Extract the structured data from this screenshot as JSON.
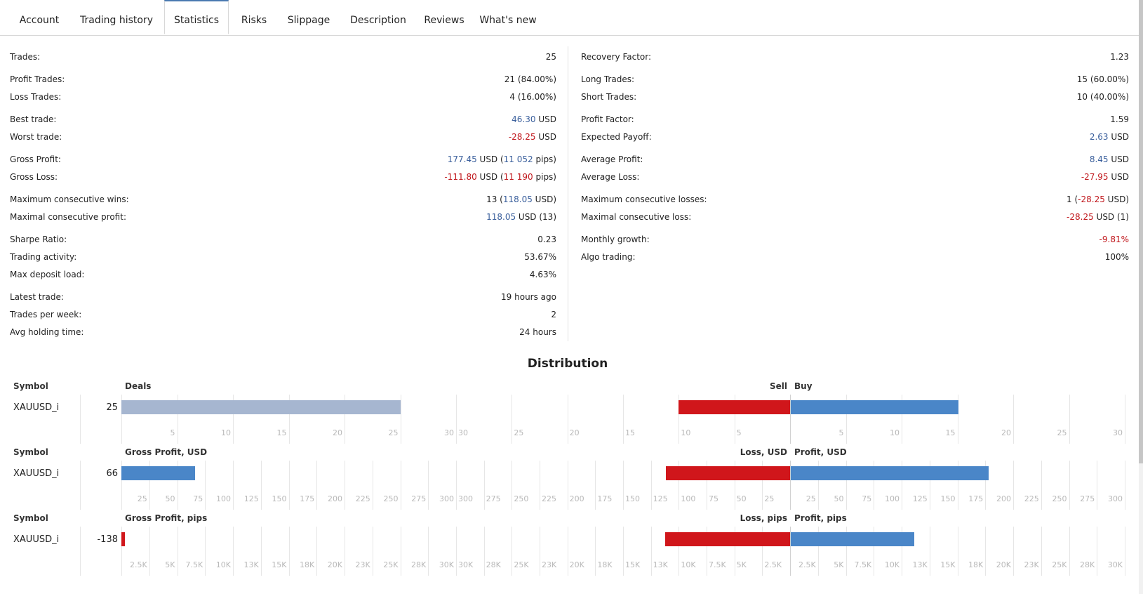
{
  "tabs": [
    "Account",
    "Trading history",
    "Statistics",
    "Risks",
    "Slippage",
    "Description",
    "Reviews",
    "What's new"
  ],
  "active_tab": "Statistics",
  "stats_left": [
    {
      "label": "Trades:",
      "value": [
        {
          "t": "25"
        }
      ]
    },
    {
      "label": "Profit Trades:",
      "value": [
        {
          "t": "21 (84.00%)"
        }
      ]
    },
    {
      "label": "Loss Trades:",
      "value": [
        {
          "t": "4 (16.00%)"
        }
      ]
    },
    {
      "label": "Best trade:",
      "value": [
        {
          "t": "46.30",
          "c": "pos"
        },
        {
          "t": " USD"
        }
      ]
    },
    {
      "label": "Worst trade:",
      "value": [
        {
          "t": "-28.25",
          "c": "neg"
        },
        {
          "t": " USD"
        }
      ]
    },
    {
      "label": "Gross Profit:",
      "value": [
        {
          "t": "177.45",
          "c": "pos"
        },
        {
          "t": " USD ("
        },
        {
          "t": "11 052",
          "c": "pos"
        },
        {
          "t": " pips)"
        }
      ]
    },
    {
      "label": "Gross Loss:",
      "value": [
        {
          "t": "-111.80",
          "c": "neg"
        },
        {
          "t": " USD ("
        },
        {
          "t": "11 190",
          "c": "neg"
        },
        {
          "t": " pips)"
        }
      ]
    },
    {
      "label": "Maximum consecutive wins:",
      "value": [
        {
          "t": "13 ("
        },
        {
          "t": "118.05",
          "c": "pos"
        },
        {
          "t": " USD)"
        }
      ]
    },
    {
      "label": "Maximal consecutive profit:",
      "value": [
        {
          "t": "118.05",
          "c": "pos"
        },
        {
          "t": " USD (13)"
        }
      ]
    },
    {
      "label": "Sharpe Ratio:",
      "value": [
        {
          "t": "0.23"
        }
      ]
    },
    {
      "label": "Trading activity:",
      "value": [
        {
          "t": "53.67%"
        }
      ]
    },
    {
      "label": "Max deposit load:",
      "value": [
        {
          "t": "4.63%"
        }
      ]
    },
    {
      "label": "Latest trade:",
      "value": [
        {
          "t": "19 hours ago"
        }
      ]
    },
    {
      "label": "Trades per week:",
      "value": [
        {
          "t": "2"
        }
      ]
    },
    {
      "label": "Avg holding time:",
      "value": [
        {
          "t": "24 hours"
        }
      ]
    }
  ],
  "stats_right": [
    {
      "label": "Recovery Factor:",
      "value": [
        {
          "t": "1.23"
        }
      ]
    },
    {
      "label": "Long Trades:",
      "value": [
        {
          "t": "15 (60.00%)"
        }
      ]
    },
    {
      "label": "Short Trades:",
      "value": [
        {
          "t": "10 (40.00%)"
        }
      ]
    },
    {
      "label": "Profit Factor:",
      "value": [
        {
          "t": "1.59"
        }
      ]
    },
    {
      "label": "Expected Payoff:",
      "value": [
        {
          "t": "2.63",
          "c": "pos"
        },
        {
          "t": " USD"
        }
      ]
    },
    {
      "label": "Average Profit:",
      "value": [
        {
          "t": "8.45",
          "c": "pos"
        },
        {
          "t": " USD"
        }
      ]
    },
    {
      "label": "Average Loss:",
      "value": [
        {
          "t": "-27.95",
          "c": "neg"
        },
        {
          "t": " USD"
        }
      ]
    },
    {
      "label": "Maximum consecutive losses:",
      "value": [
        {
          "t": "1 ("
        },
        {
          "t": "-28.25",
          "c": "neg"
        },
        {
          "t": " USD)"
        }
      ]
    },
    {
      "label": "Maximal consecutive loss:",
      "value": [
        {
          "t": "-28.25",
          "c": "neg"
        },
        {
          "t": " USD (1)"
        }
      ]
    },
    {
      "label": "Monthly growth:",
      "value": [
        {
          "t": "-9.81%",
          "c": "neg"
        }
      ]
    },
    {
      "label": "Algo trading:",
      "value": [
        {
          "t": "100%"
        }
      ]
    }
  ],
  "distribution": {
    "title": "Distribution",
    "colors": {
      "neutral": "#a6b6d0",
      "loss": "#d0161b",
      "profit": "#4a86c8"
    },
    "charts": [
      {
        "symbol_header": "Symbol",
        "symbol": "XAUUSD_i",
        "total_label": "25",
        "left_header": "Deals",
        "left_value": 25,
        "left_color": "neutral",
        "left_ticks": [
          "5",
          "10",
          "15",
          "20",
          "25",
          "30"
        ],
        "left_max": 30,
        "neg_header": "Sell",
        "neg_value": 10,
        "neg_ticks": [
          "30",
          "25",
          "20",
          "15",
          "10",
          "5"
        ],
        "pos_header": "Buy",
        "pos_value": 15,
        "pos_ticks": [
          "5",
          "10",
          "15",
          "20",
          "25",
          "30"
        ],
        "split_max": 30
      },
      {
        "symbol_header": "Symbol",
        "symbol": "XAUUSD_i",
        "total_label": "66",
        "left_header": "Gross Profit, USD",
        "left_value": 66,
        "left_color": "profit",
        "left_ticks": [
          "25",
          "50",
          "75",
          "100",
          "125",
          "150",
          "175",
          "200",
          "225",
          "250",
          "275",
          "300"
        ],
        "left_max": 300,
        "neg_header": "Loss, USD",
        "neg_value": 111.8,
        "neg_ticks": [
          "300",
          "275",
          "250",
          "225",
          "200",
          "175",
          "150",
          "125",
          "100",
          "75",
          "50",
          "25"
        ],
        "pos_header": "Profit, USD",
        "pos_value": 177.45,
        "pos_ticks": [
          "25",
          "50",
          "75",
          "100",
          "125",
          "150",
          "175",
          "200",
          "225",
          "250",
          "275",
          "300"
        ],
        "split_max": 300
      },
      {
        "symbol_header": "Symbol",
        "symbol": "XAUUSD_i",
        "total_label": "-138",
        "left_header": "Gross Profit, pips",
        "left_value": -138,
        "left_color": "loss",
        "left_ticks": [
          "2.5K",
          "5K",
          "7.5K",
          "10K",
          "13K",
          "15K",
          "18K",
          "20K",
          "23K",
          "25K",
          "28K",
          "30K"
        ],
        "left_max": 30000,
        "neg_header": "Loss, pips",
        "neg_value": 11190,
        "neg_ticks": [
          "30K",
          "28K",
          "25K",
          "23K",
          "20K",
          "18K",
          "15K",
          "13K",
          "10K",
          "7.5K",
          "5K",
          "2.5K"
        ],
        "pos_header": "Profit, pips",
        "pos_value": 11052,
        "pos_ticks": [
          "2.5K",
          "5K",
          "7.5K",
          "10K",
          "13K",
          "15K",
          "18K",
          "20K",
          "23K",
          "25K",
          "28K",
          "30K"
        ],
        "split_max": 30000
      }
    ]
  }
}
